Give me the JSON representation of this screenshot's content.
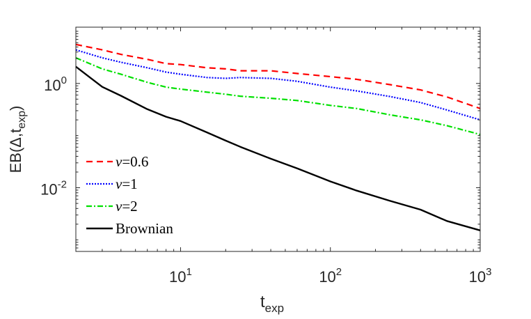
{
  "chart_data": {
    "type": "line",
    "title": "",
    "xlabel": {
      "base": "t",
      "sub": "exp"
    },
    "ylabel": {
      "prefix": "EB(",
      "delta": "Δ",
      "sep": ",",
      "t": "t",
      "sub": "exp",
      "suffix": ")"
    },
    "xscale": "log",
    "yscale": "log",
    "xlim": [
      2,
      1000
    ],
    "ylim": [
      0.0006,
      12
    ],
    "xticks": [
      {
        "value": 10,
        "base": "10",
        "exp": "1"
      },
      {
        "value": 100,
        "base": "10",
        "exp": "2"
      },
      {
        "value": 1000,
        "base": "10",
        "exp": "3"
      }
    ],
    "yticks": [
      {
        "value": 1,
        "base": "10",
        "exp": "0"
      },
      {
        "value": 0.01,
        "base": "10",
        "exp": "-2"
      }
    ],
    "legend_position": "bottom-left",
    "x": [
      2,
      3,
      4,
      6,
      8,
      10,
      15,
      20,
      25,
      40,
      60,
      100,
      150,
      250,
      400,
      600,
      1000
    ],
    "series": [
      {
        "name": "ν=0.6",
        "label_symbol": "ν",
        "label_value": "=0.6",
        "color": "#ff0000",
        "dash": "9,6",
        "values": [
          5.6,
          4.4,
          3.6,
          2.9,
          2.4,
          2.3,
          2.0,
          1.9,
          1.75,
          1.75,
          1.55,
          1.35,
          1.2,
          0.95,
          0.75,
          0.55,
          0.33
        ]
      },
      {
        "name": "ν=1",
        "label_symbol": "ν",
        "label_value": "=1",
        "color": "#0000ff",
        "dash": "2,2",
        "values": [
          4.4,
          3.1,
          2.55,
          2.0,
          1.65,
          1.5,
          1.3,
          1.25,
          1.3,
          1.25,
          1.1,
          0.85,
          0.72,
          0.56,
          0.43,
          0.31,
          0.2
        ]
      },
      {
        "name": "ν=2",
        "label_symbol": "ν",
        "label_value": "=2",
        "color": "#00e000",
        "dash": "8,3,2,3",
        "values": [
          3.1,
          1.9,
          1.5,
          1.05,
          0.85,
          0.78,
          0.68,
          0.62,
          0.57,
          0.52,
          0.47,
          0.38,
          0.33,
          0.25,
          0.2,
          0.155,
          0.105
        ]
      },
      {
        "name": "Brownian",
        "label_symbol": "",
        "label_value": "Brownian",
        "color": "#000000",
        "dash": "",
        "values": [
          2.1,
          0.86,
          0.58,
          0.32,
          0.23,
          0.19,
          0.115,
          0.08,
          0.061,
          0.036,
          0.0235,
          0.0132,
          0.0088,
          0.0056,
          0.0038,
          0.0023,
          0.00152
        ]
      }
    ]
  }
}
